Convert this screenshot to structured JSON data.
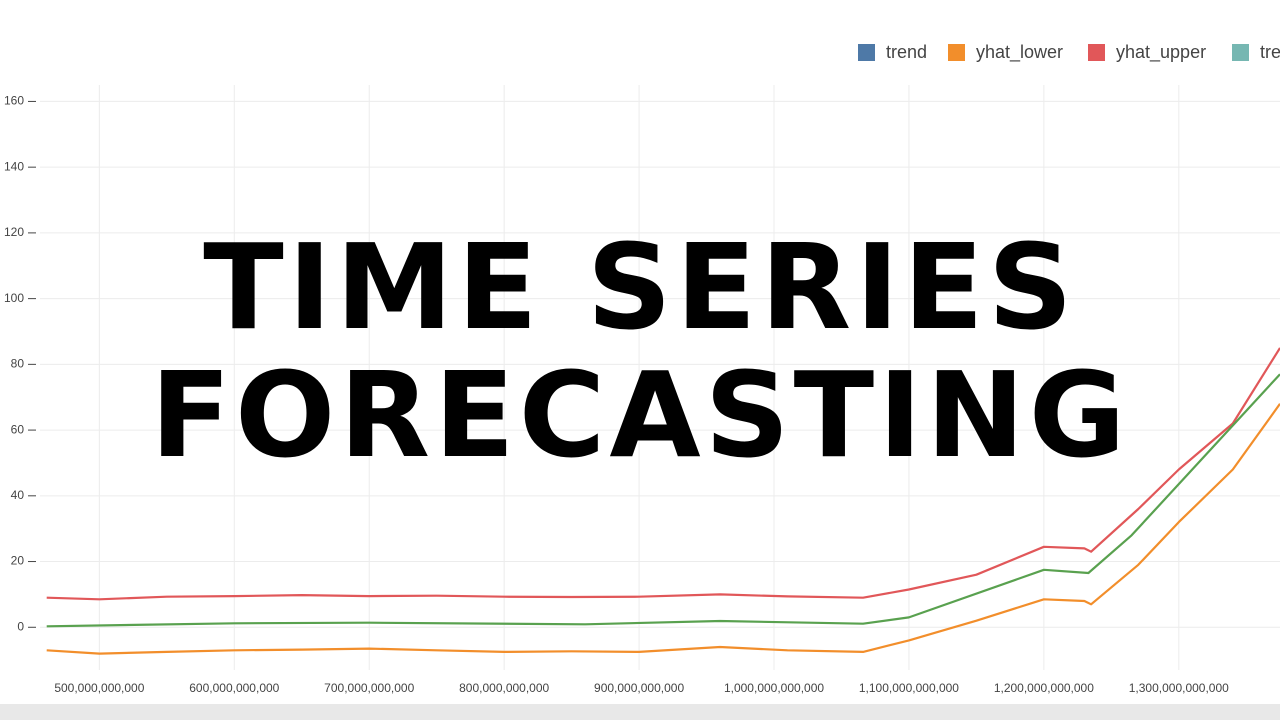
{
  "chart_data": {
    "type": "line",
    "title_lines": [
      "TIME SERIES",
      "FORECASTING"
    ],
    "legend": [
      {
        "name": "trend",
        "color": "#4e79a7"
      },
      {
        "name": "yhat_lower",
        "color": "#f28e2b"
      },
      {
        "name": "yhat_upper",
        "color": "#e15759"
      },
      {
        "name": "tre",
        "color": "#76b7b2"
      }
    ],
    "series": [
      {
        "color": "#e15759",
        "x": [
          461000000000,
          500000000000,
          550000000000,
          600000000000,
          650000000000,
          700000000000,
          750000000000,
          800000000000,
          850000000000,
          900000000000,
          960000000000,
          1010000000000,
          1066000000000,
          1100000000000,
          1150000000000,
          1200000000000,
          1230000000000,
          1235000000000,
          1270000000000,
          1300000000000,
          1340000000000,
          1375000000000
        ],
        "values": [
          9,
          8.5,
          9.3,
          9.5,
          9.8,
          9.5,
          9.6,
          9.3,
          9.2,
          9.3,
          10,
          9.4,
          9,
          11.5,
          16,
          24.5,
          24,
          23,
          36,
          48,
          62,
          85
        ]
      },
      {
        "color": "#59a14f",
        "x": [
          461000000000,
          600000000000,
          700000000000,
          860000000000,
          960000000000,
          1066000000000,
          1100000000000,
          1200000000000,
          1233000000000,
          1265000000000,
          1375000000000
        ],
        "values": [
          0.3,
          1.2,
          1.4,
          0.9,
          1.9,
          1.1,
          3,
          17.5,
          16.5,
          28,
          77
        ]
      },
      {
        "color": "#f28e2b",
        "x": [
          461000000000,
          500000000000,
          550000000000,
          600000000000,
          650000000000,
          700000000000,
          750000000000,
          800000000000,
          850000000000,
          900000000000,
          960000000000,
          1010000000000,
          1066000000000,
          1100000000000,
          1150000000000,
          1200000000000,
          1230000000000,
          1235000000000,
          1270000000000,
          1300000000000,
          1340000000000,
          1375000000000
        ],
        "values": [
          -7,
          -8,
          -7.5,
          -7,
          -6.8,
          -6.5,
          -7,
          -7.5,
          -7.3,
          -7.5,
          -6,
          -7,
          -7.5,
          -4,
          2,
          8.5,
          8,
          7,
          19,
          32,
          48,
          68
        ]
      }
    ],
    "xlim": [
      456000000000,
      1375000000000
    ],
    "xticks": [
      {
        "value": 500000000000,
        "label": "500,000,000,000"
      },
      {
        "value": 600000000000,
        "label": "600,000,000,000"
      },
      {
        "value": 700000000000,
        "label": "700,000,000,000"
      },
      {
        "value": 800000000000,
        "label": "800,000,000,000"
      },
      {
        "value": 900000000000,
        "label": "900,000,000,000"
      },
      {
        "value": 1000000000000,
        "label": "1,000,000,000,000"
      },
      {
        "value": 1100000000000,
        "label": "1,100,000,000,000"
      },
      {
        "value": 1200000000000,
        "label": "1,200,000,000,000"
      },
      {
        "value": 1300000000000,
        "label": "1,300,000,000,000"
      }
    ],
    "ylim": [
      -13,
      165
    ],
    "yticks": [
      0,
      20,
      40,
      60,
      80,
      100,
      120,
      140,
      160
    ],
    "grid": true
  }
}
